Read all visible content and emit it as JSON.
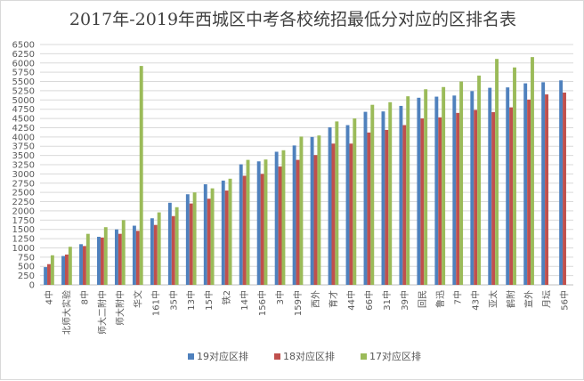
{
  "chart_data": {
    "type": "bar",
    "title": "2017年-2019年西城区中考各校统招最低分对应的区排名表",
    "xlabel": "",
    "ylabel": "",
    "ylim": [
      0,
      6500
    ],
    "yticks": [
      0,
      250,
      500,
      750,
      1000,
      1250,
      1500,
      1750,
      2000,
      2250,
      2500,
      2750,
      3000,
      3250,
      3500,
      3750,
      4000,
      4250,
      4500,
      4750,
      5000,
      5250,
      5500,
      5750,
      6000,
      6250,
      6500
    ],
    "grid": true,
    "legend_position": "bottom",
    "categories": [
      "4中",
      "北师大实验",
      "8中",
      "师大二附中",
      "师大附中",
      "华文",
      "161中",
      "35中",
      "13中",
      "15中",
      "铁2",
      "14中",
      "156中",
      "3中",
      "159中",
      "西外",
      "育才",
      "44中",
      "66中",
      "31中",
      "39中",
      "回民",
      "鲁迅",
      "7中",
      "43中",
      "亚太",
      "鹤附",
      "宣外",
      "月坛",
      "56中"
    ],
    "series": [
      {
        "name": "19对应区排",
        "color": "#4f81bd",
        "values": [
          480,
          780,
          1100,
          1300,
          1500,
          1600,
          1800,
          2220,
          2450,
          2720,
          2820,
          3260,
          3340,
          3600,
          3770,
          4000,
          4260,
          4320,
          4680,
          4690,
          4840,
          5060,
          5090,
          5120,
          5240,
          5330,
          5340,
          5450,
          5480,
          5530
        ]
      },
      {
        "name": "18对应区排",
        "color": "#c0504d",
        "values": [
          560,
          820,
          1050,
          1280,
          1380,
          1460,
          1620,
          1860,
          2200,
          2330,
          2550,
          2950,
          3000,
          3200,
          3380,
          3510,
          3820,
          3820,
          4120,
          4190,
          4320,
          4500,
          4530,
          4650,
          4730,
          4670,
          4800,
          5010,
          5150,
          5200
        ]
      },
      {
        "name": "17对应区排",
        "color": "#9bbb59",
        "values": [
          800,
          1030,
          1380,
          1560,
          1750,
          5920,
          1960,
          2100,
          2500,
          2610,
          2870,
          3380,
          3390,
          3640,
          4010,
          4040,
          4420,
          4500,
          4870,
          4940,
          5100,
          5290,
          5350,
          5500,
          5660,
          6110,
          5880,
          6160,
          null,
          null
        ]
      }
    ]
  }
}
